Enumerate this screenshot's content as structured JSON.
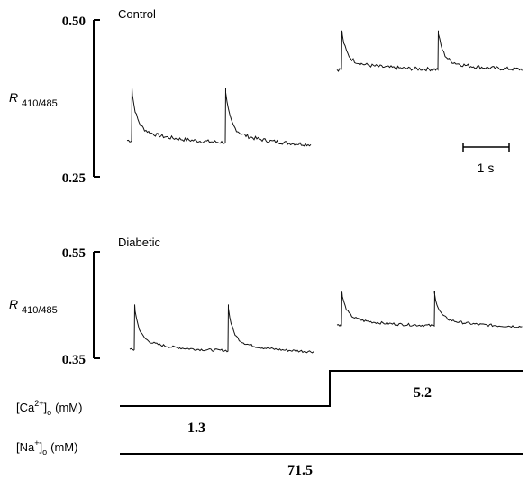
{
  "chart_data": [
    {
      "type": "line",
      "title": "Control",
      "ylabel": "R 410/485",
      "ylabel_main": "R",
      "ylabel_sub": "410/485",
      "ylim": [
        0.25,
        0.5
      ],
      "ytick_labels": [
        "0.50",
        "0.25"
      ],
      "scale_bar_label": "1 s",
      "series": [
        {
          "condition": "1.3 mM Ca, 71.5 mM Na",
          "peaks_s": [
            0.0,
            1.0
          ],
          "baseline": 0.308,
          "peak": 0.392,
          "end_value": 0.295
        },
        {
          "condition": "5.2 mM Ca, 71.5 mM Na",
          "peaks_s": [
            0.0,
            1.0
          ],
          "baseline": 0.421,
          "peak": 0.483,
          "end_value": 0.42
        }
      ]
    },
    {
      "type": "line",
      "title": "Diabetic",
      "ylabel": "R 410/485",
      "ylabel_main": "R",
      "ylabel_sub": "410/485",
      "ylim": [
        0.35,
        0.55
      ],
      "ytick_labels": [
        "0.55",
        "0.35"
      ],
      "series": [
        {
          "condition": "1.3 mM Ca, 71.5 mM Na",
          "peaks_s": [
            0.0,
            1.0
          ],
          "baseline": 0.366,
          "peak": 0.451,
          "end_value": 0.358
        },
        {
          "condition": "5.2 mM Ca, 71.5 mM Na",
          "peaks_s": [
            0.0,
            1.0
          ],
          "baseline": 0.413,
          "peak": 0.475,
          "end_value": 0.406
        }
      ]
    }
  ],
  "protocol": {
    "ca_label_main": "[Ca",
    "ca_label_sup": "2+",
    "ca_label_end": "]",
    "ca_label_sub": "o",
    "ca_label_unit": "(mM)",
    "ca_low": "1.3",
    "ca_high": "5.2",
    "na_label_main": "[Na",
    "na_label_sup": "+",
    "na_label_end": "]",
    "na_label_sub": "o",
    "na_label_unit": "(mM)",
    "na_value": "71.5"
  }
}
